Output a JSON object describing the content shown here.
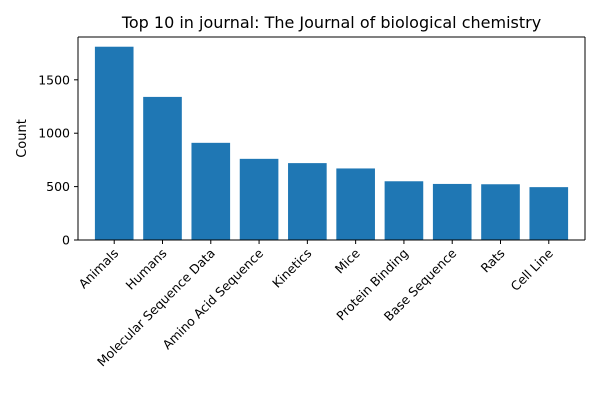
{
  "chart_data": {
    "type": "bar",
    "title": "Top 10 in journal: The Journal of biological chemistry",
    "xlabel": "",
    "ylabel": "Count",
    "categories": [
      "Animals",
      "Humans",
      "Molecular Sequence Data",
      "Amino Acid Sequence",
      "Kinetics",
      "Mice",
      "Protein Binding",
      "Base Sequence",
      "Rats",
      "Cell Line"
    ],
    "values": [
      1810,
      1340,
      910,
      760,
      720,
      670,
      550,
      525,
      522,
      495
    ],
    "ylim": [
      0,
      1901
    ],
    "yticks": [
      0,
      500,
      1000,
      1500
    ],
    "bar_color": "#1f77b4",
    "grid": false,
    "legend": "none"
  }
}
